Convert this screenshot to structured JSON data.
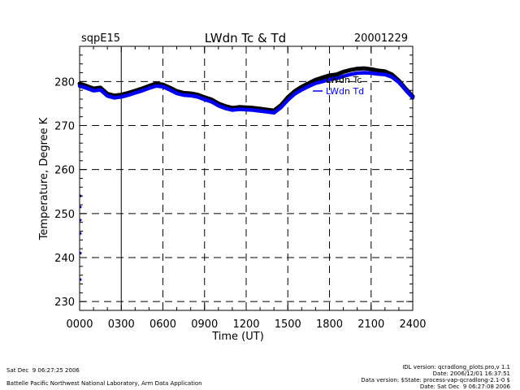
{
  "chart_data": {
    "type": "line",
    "title": "LWdn Tc & Td",
    "site_label": "sqpE15",
    "date_label": "20001229",
    "xlabel": "Time (UT)",
    "ylabel": "Temperature, Degree K",
    "xlim": [
      0,
      24
    ],
    "ylim": [
      228,
      288
    ],
    "x_ticks": [
      0,
      3,
      6,
      9,
      12,
      15,
      18,
      21,
      24
    ],
    "x_tick_labels": [
      "0000",
      "0300",
      "0600",
      "0900",
      "1200",
      "1500",
      "1800",
      "2100",
      "2400"
    ],
    "y_ticks": [
      230,
      240,
      250,
      260,
      270,
      280
    ],
    "y_tick_labels": [
      "230",
      "240",
      "250",
      "260",
      "270",
      "280"
    ],
    "grid": true,
    "legend_position": "top-right",
    "series": [
      {
        "name": "LWdn Tc",
        "color": "#000000",
        "x": [
          0,
          0.5,
          1,
          1.5,
          2,
          2.5,
          3,
          3.5,
          4,
          4.5,
          5,
          5.5,
          6,
          6.5,
          7,
          7.5,
          8,
          8.5,
          9,
          9.5,
          10,
          10.5,
          11,
          11.5,
          12,
          12.5,
          13,
          13.5,
          14,
          14.5,
          15,
          15.5,
          16,
          16.5,
          17,
          17.5,
          18,
          18.5,
          19,
          19.5,
          20,
          20.5,
          21,
          21.5,
          22,
          22.5,
          23,
          23.5,
          24
        ],
        "values": [
          279.5,
          279.0,
          278.4,
          278.6,
          277.2,
          276.8,
          277.0,
          277.4,
          277.9,
          278.4,
          279.0,
          279.5,
          279.3,
          278.6,
          277.8,
          277.4,
          277.3,
          277.0,
          276.4,
          275.9,
          275.0,
          274.4,
          274.0,
          274.2,
          274.1,
          274.0,
          273.8,
          273.6,
          273.4,
          274.6,
          276.4,
          277.8,
          278.8,
          279.6,
          280.4,
          280.9,
          281.4,
          281.6,
          282.2,
          282.6,
          282.9,
          283.0,
          282.8,
          282.5,
          282.3,
          281.6,
          280.2,
          278.3,
          276.6
        ]
      },
      {
        "name": "LWdn Td",
        "color": "#0000ff",
        "x": [
          0,
          0.5,
          1,
          1.5,
          2,
          2.5,
          3,
          3.5,
          4,
          4.5,
          5,
          5.5,
          6,
          6.5,
          7,
          7.5,
          8,
          8.5,
          9,
          9.5,
          10,
          10.5,
          11,
          11.5,
          12,
          12.5,
          13,
          13.5,
          14,
          14.5,
          15,
          15.5,
          16,
          16.5,
          17,
          17.5,
          18,
          18.5,
          19,
          19.5,
          20,
          20.5,
          21,
          21.5,
          22,
          22.5,
          23,
          23.5,
          24
        ],
        "values": [
          279.0,
          278.5,
          277.9,
          278.1,
          276.7,
          276.3,
          276.5,
          276.9,
          277.4,
          277.9,
          278.5,
          279.0,
          278.8,
          278.1,
          277.3,
          276.9,
          276.8,
          276.5,
          275.9,
          275.4,
          274.5,
          273.9,
          273.5,
          273.7,
          273.6,
          273.5,
          273.3,
          273.1,
          272.9,
          274.1,
          275.8,
          277.2,
          278.1,
          278.9,
          279.6,
          280.0,
          280.5,
          280.7,
          281.2,
          281.6,
          281.9,
          282.0,
          281.9,
          281.7,
          281.6,
          281.0,
          279.8,
          278.0,
          276.3
        ]
      }
    ],
    "outlier_points": {
      "x": [
        0.05,
        0.05,
        0.05,
        0.05,
        0.05,
        0.05
      ],
      "values": [
        254,
        251.5,
        248.5,
        245.5,
        241,
        235
      ],
      "color": "#0000ff"
    }
  },
  "footer": {
    "timestamp_left": "Sat Dec  9 06:27:25 2006",
    "org_left": "Battelle Pacific Northwest National Laboratory, Arm Data Application",
    "idl_version": "IDL version: qcradlong_plots.pro,v 1.1",
    "date_line": "Date: 2006/12/01 16:37:51",
    "data_version": "Data version: $State: process-vap-qcradlong-2.1-0 $",
    "date_bottom": "Date: Sat Dec  9 06:27:08 2006"
  }
}
